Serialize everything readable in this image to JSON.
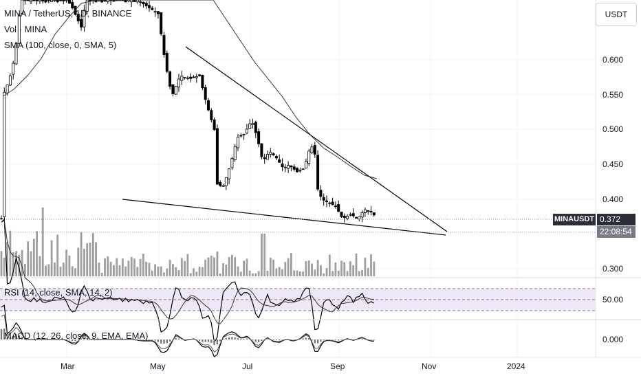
{
  "header": {
    "symbol_line": "MINA / TetherUS, 1D, BINANCE",
    "volume_line": "Vol · MINA",
    "sma_line": "SMA (100, close, 0, SMA, 5)"
  },
  "toolbar": {
    "currency_label": "USDT"
  },
  "price_axis": {
    "ticks": [
      "0.600",
      "0.550",
      "0.500",
      "0.450",
      "0.400",
      "0.300"
    ]
  },
  "price_badges": {
    "symbol": "MINAUSDT",
    "last_price": "0.372",
    "countdown": "22:08:54"
  },
  "rsi_panel": {
    "label": "RSI (14, close, SMA, 14, 2)",
    "tick": "50.00"
  },
  "macd_panel": {
    "label": "MACD (12, 26, close, 9, EMA, EMA)",
    "tick": "0.000"
  },
  "time_axis": {
    "ticks": [
      "Mar",
      "May",
      "Jul",
      "Sep",
      "Nov",
      "2024"
    ]
  },
  "colors": {
    "candles": "#000000",
    "grid": "#f0f3fa",
    "rsi_band": "#ede7f6",
    "badge": "#2a2e39"
  }
}
